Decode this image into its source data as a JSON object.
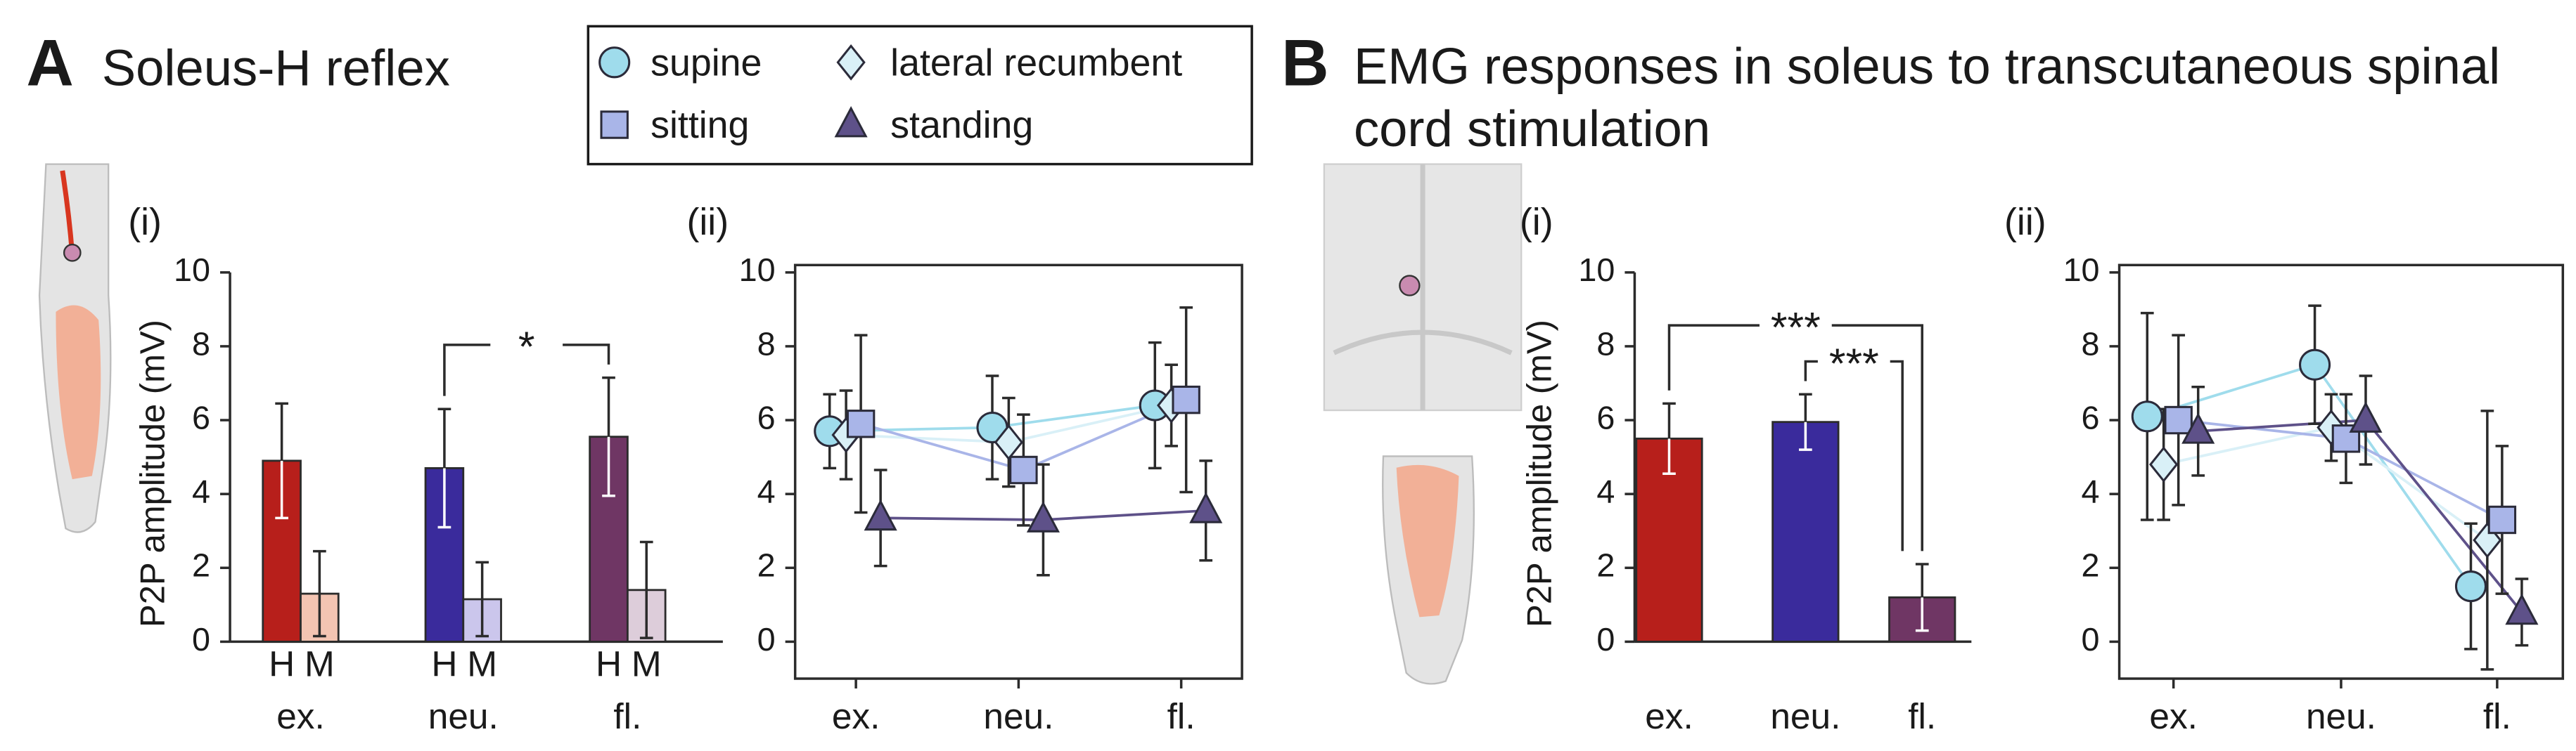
{
  "panels": [
    {
      "letter": "A",
      "title": "Soleus-H reflex"
    },
    {
      "letter": "B",
      "title": "EMG responses in soleus to transcutaneous spinal cord stimulation"
    }
  ],
  "legend": [
    {
      "name": "supine",
      "marker": "circle",
      "color": "#9fdcec"
    },
    {
      "name": "lateral recumbent",
      "marker": "diamond",
      "color": "#d9f0f7"
    },
    {
      "name": "sitting",
      "marker": "square",
      "color": "#a9b5e8"
    },
    {
      "name": "standing",
      "marker": "triangle",
      "color": "#5e5189"
    }
  ],
  "chart_data": [
    {
      "type": "bar",
      "label": "(i)",
      "ylabel": "P2P amplitude (mV)",
      "categories": [
        "ex.",
        "neu.",
        "fl."
      ],
      "ylim": [
        0,
        10
      ],
      "yticks": [
        0,
        2,
        4,
        6,
        8,
        10
      ],
      "series": [
        {
          "name": "H",
          "colors": [
            "#b71f1b",
            "#3a2b9c",
            "#6f3664"
          ],
          "values": [
            4.9,
            4.7,
            5.55
          ],
          "errors": [
            1.55,
            1.6,
            1.6
          ]
        },
        {
          "name": "M",
          "colors": [
            "#f3c4b2",
            "#cbc6ec",
            "#ddcdda"
          ],
          "values": [
            1.3,
            1.15,
            1.4
          ],
          "errors": [
            1.15,
            1.0,
            1.3
          ]
        }
      ],
      "annotations": [
        {
          "text": "*",
          "from": 1,
          "to": 2
        }
      ]
    },
    {
      "type": "line",
      "label": "(ii)",
      "categories": [
        "ex.",
        "neu.",
        "fl."
      ],
      "ylim": [
        -1,
        10.2
      ],
      "yticks": [
        0,
        2,
        4,
        6,
        8,
        10
      ],
      "series": [
        {
          "values": [
            5.7,
            5.8,
            6.4
          ],
          "errors": [
            1.0,
            1.4,
            1.7
          ]
        },
        {
          "values": [
            5.6,
            5.4,
            6.4
          ],
          "errors": [
            1.2,
            1.2,
            1.1
          ]
        },
        {
          "values": [
            5.9,
            4.65,
            6.55
          ],
          "errors": [
            2.4,
            1.5,
            2.5
          ]
        },
        {
          "values": [
            3.35,
            3.3,
            3.55
          ],
          "errors": [
            1.3,
            1.5,
            1.35
          ]
        }
      ]
    },
    {
      "type": "bar",
      "label": "(i)",
      "ylabel": "P2P amplitude (mV)",
      "categories": [
        "ex.",
        "neu.",
        "fl."
      ],
      "ylim": [
        0,
        10
      ],
      "yticks": [
        0,
        2,
        4,
        6,
        8,
        10
      ],
      "series": [
        {
          "colors": [
            "#b71f1b",
            "#3a2b9c",
            "#6f3664"
          ],
          "values": [
            5.5,
            5.95,
            1.2
          ],
          "errors": [
            0.95,
            0.75,
            0.9
          ]
        }
      ],
      "annotations": [
        {
          "text": "***",
          "from": 0,
          "to": 2
        },
        {
          "text": "***",
          "from": 1,
          "to": 2
        }
      ]
    },
    {
      "type": "line",
      "label": "(ii)",
      "categories": [
        "ex.",
        "neu.",
        "fl."
      ],
      "ylim": [
        -1,
        10.2
      ],
      "yticks": [
        0,
        2,
        4,
        6,
        8,
        10
      ],
      "series": [
        {
          "values": [
            6.1,
            7.5,
            1.5
          ],
          "errors": [
            2.8,
            1.6,
            1.7
          ]
        },
        {
          "values": [
            4.8,
            5.8,
            2.75
          ],
          "errors": [
            1.5,
            0.9,
            3.5
          ]
        },
        {
          "values": [
            6.0,
            5.5,
            3.3
          ],
          "errors": [
            2.3,
            1.2,
            2.0
          ]
        },
        {
          "values": [
            5.7,
            6.0,
            0.8
          ],
          "errors": [
            1.2,
            1.2,
            0.9
          ]
        }
      ]
    }
  ]
}
